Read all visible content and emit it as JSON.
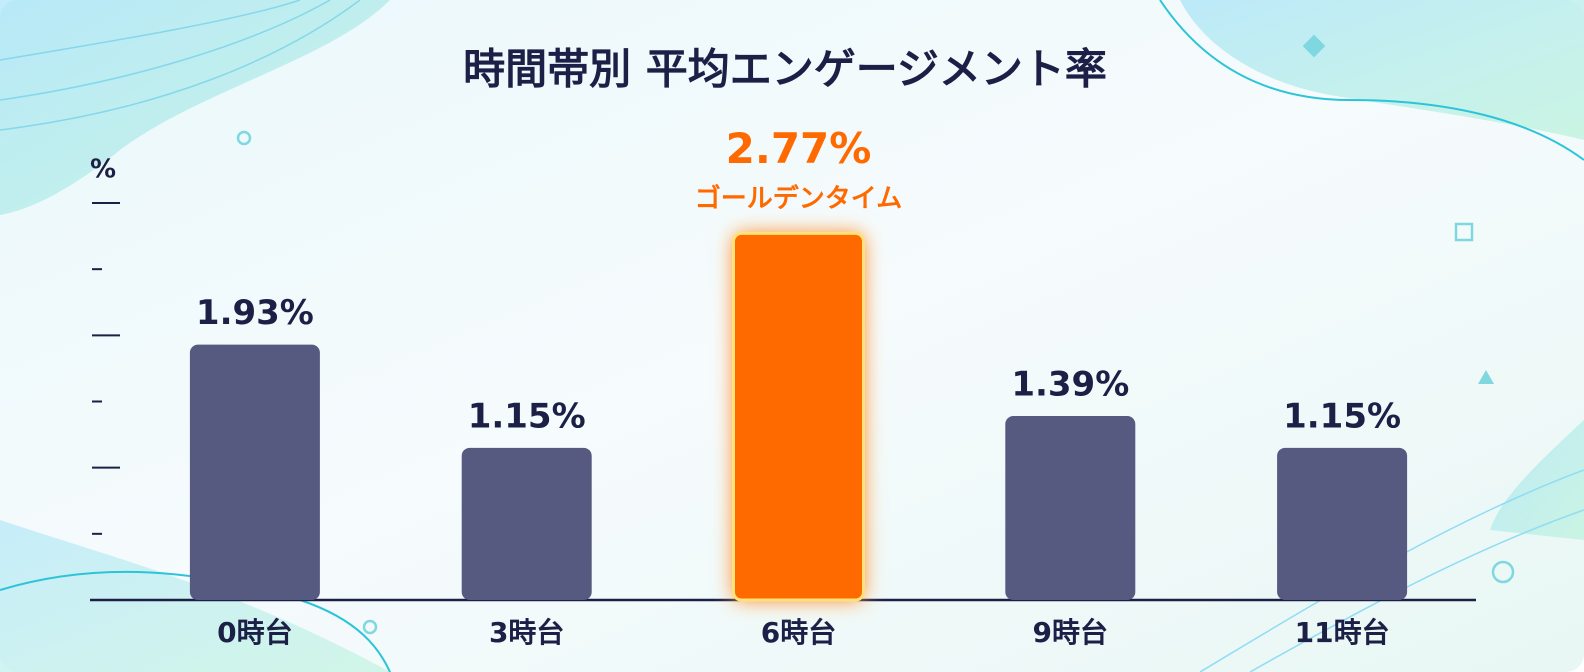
{
  "chart_data": {
    "type": "bar",
    "title": "時間帯別 平均エンゲージメント率",
    "y_label": "%",
    "categories": [
      "0時台",
      "3時台",
      "6時台",
      "9時台",
      "11時台"
    ],
    "values": [
      1.93,
      1.15,
      2.77,
      1.39,
      1.15
    ],
    "value_labels": [
      "1.93%",
      "1.15%",
      "2.77%",
      "1.39%",
      "1.15%"
    ],
    "color": "#565a80",
    "highlight": "6時台",
    "highlight_color": "#ff6a00",
    "annotation": {
      "text": "ゴールデンタイム",
      "category": "6時台"
    },
    "ylim": [
      0,
      3
    ],
    "yticks": [
      0.5,
      1,
      1.5,
      2,
      2.5,
      3
    ],
    "grid": false
  }
}
